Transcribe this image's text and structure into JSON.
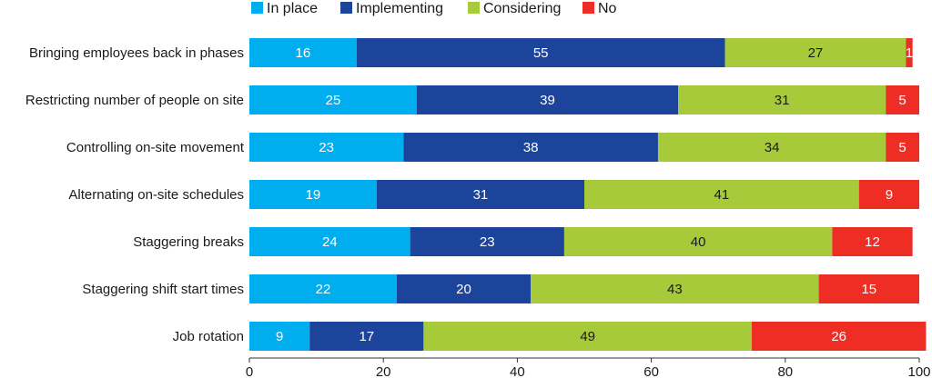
{
  "chart_data": {
    "type": "bar",
    "orientation": "horizontal",
    "stacked": true,
    "title": "",
    "xlabel": "",
    "ylabel": "",
    "xlim": [
      0,
      100
    ],
    "xticks": [
      0,
      20,
      40,
      60,
      80,
      100
    ],
    "grid": false,
    "legend_position": "top",
    "categories": [
      "Bringing employees back in phases",
      "Restricting number of people on site",
      "Controlling on-site movement",
      "Alternating on-site schedules",
      "Staggering breaks",
      "Staggering shift start times",
      "Job rotation"
    ],
    "series": [
      {
        "name": "In place",
        "color": "#00aeef",
        "label_color": "#ffffff",
        "values": [
          16,
          25,
          23,
          19,
          24,
          22,
          9
        ]
      },
      {
        "name": "Implementing",
        "color": "#1c449a",
        "label_color": "#ffffff",
        "values": [
          55,
          39,
          38,
          31,
          23,
          20,
          17
        ]
      },
      {
        "name": "Considering",
        "color": "#a6ca3a",
        "label_color": "#1a1a1a",
        "values": [
          27,
          31,
          34,
          41,
          40,
          43,
          49
        ]
      },
      {
        "name": "No",
        "color": "#ee2e24",
        "label_color": "#ffffff",
        "values": [
          1,
          5,
          5,
          9,
          12,
          15,
          26
        ]
      }
    ]
  }
}
